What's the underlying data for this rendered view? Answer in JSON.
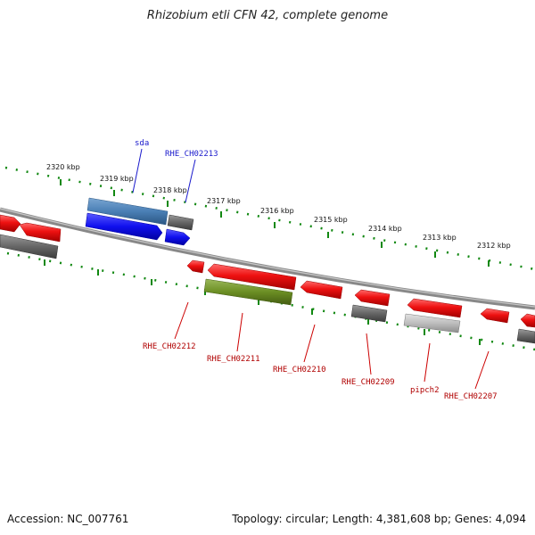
{
  "title": "Rhizobium etli CFN 42, complete genome",
  "accession": "Accession: NC_007761",
  "summary": "Topology: circular; Length: 4,381,608 bp; Genes: 4,094",
  "ticks": [
    "2320 kbp",
    "2319 kbp",
    "2318 kbp",
    "2317 kbp",
    "2316 kbp",
    "2315 kbp",
    "2314 kbp",
    "2313 kbp",
    "2312 kbp"
  ],
  "gene_labels": {
    "sda": "sda",
    "RHE_CH02213": "RHE_CH02213",
    "RHE_CH02212": "RHE_CH02212",
    "RHE_CH02211": "RHE_CH02211",
    "RHE_CH02210": "RHE_CH02210",
    "RHE_CH02209": "RHE_CH02209",
    "pipch2": "pipch2",
    "RHE_CH02207": "RHE_CH02207"
  },
  "colors": {
    "gene_red": "#ee1111",
    "gene_blue": "#1010ee",
    "cds_steelblue": "#4a7fb5",
    "cds_gray": "#666666",
    "cds_olive": "#6b8e23",
    "cds_lightgray": "#bdbdbd",
    "tick_green": "#118811",
    "backbone": "#888888",
    "label_blue": "#1a1acc",
    "label_red": "#b00000"
  }
}
